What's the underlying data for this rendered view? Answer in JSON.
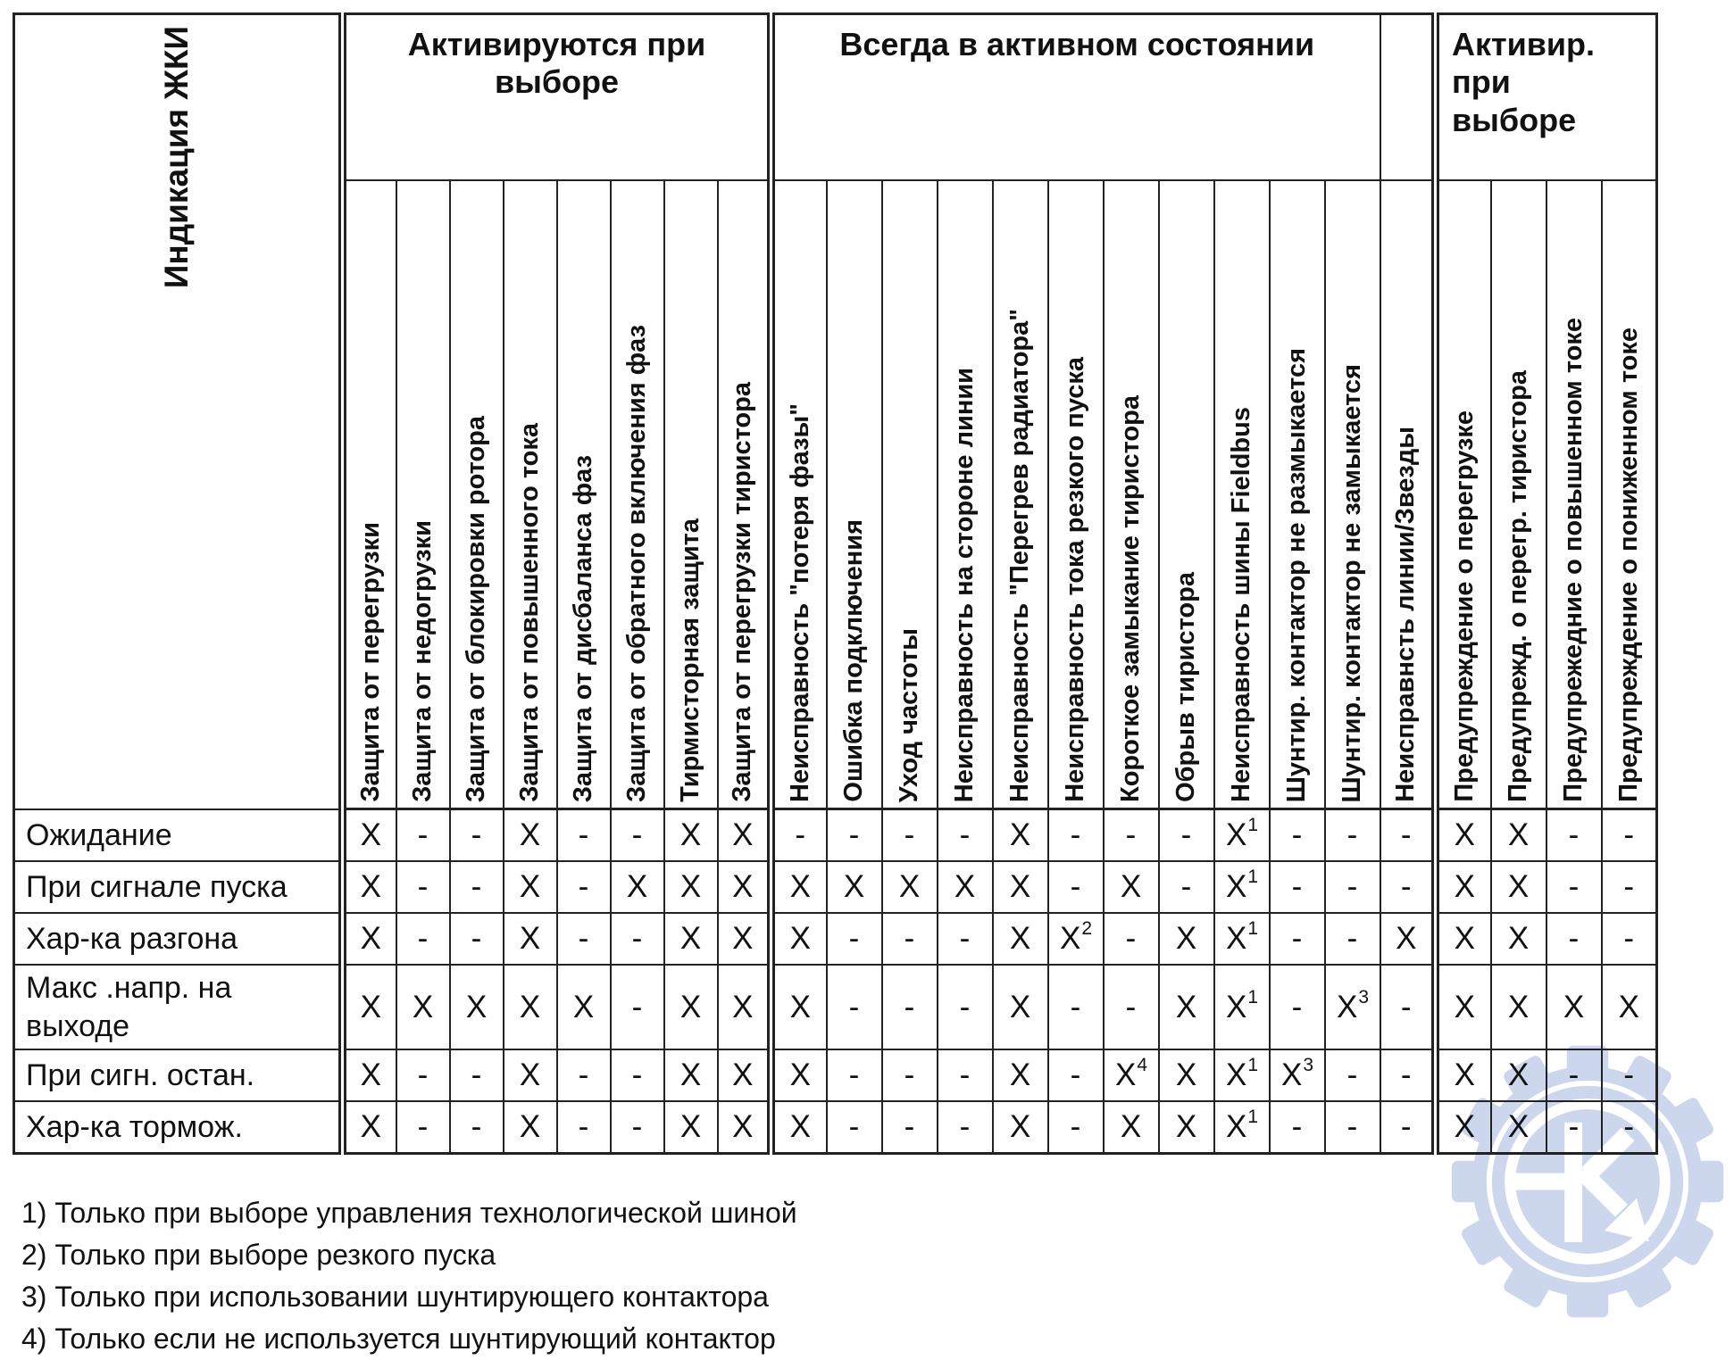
{
  "table": {
    "corner_label": "Индикация ЖКИ",
    "groups": [
      {
        "label": "Активируются при выборе",
        "span": 8
      },
      {
        "label": "Всегда в активном состоянии",
        "span": 11
      },
      {
        "label": "",
        "span": 1
      },
      {
        "label": "Активир. при выборе",
        "span": 4
      }
    ],
    "columns": [
      "Защита от перегрузки",
      "Защита от недогрузки",
      "Защита от блокировки ротора",
      "Защита от повышенного тока",
      "Защита от дисбаланса фаз",
      "Защита от обратного включения фаз",
      "Тирмисторная защита",
      "Защита от перегрузки тиристора",
      "Неисправность \"потеря фазы\"",
      "Ошибка подключения",
      "Уход частоты",
      "Неисправность на стороне линии",
      "Неисправность \"Перегрев радиатора\"",
      "Неисправность тока резкого пуска",
      "Короткое замыкание тиристора",
      "Обрыв тиристора",
      "Неисправность шины Fieldbus",
      "Шунтир. контактор не размыкается",
      "Шунтир. контактор не замыкается",
      "Неисправнсть линии/Звезды",
      "Предупреждение о перегрузке",
      "Предупрежд. о перегр. тиристора",
      "Предупрежедние о повышенном токе",
      "Предупреждение о пониженном токе"
    ],
    "rows": [
      {
        "label": "Ожидание",
        "cells": [
          "X",
          "-",
          "-",
          "X",
          "-",
          "-",
          "X",
          "X",
          "-",
          "-",
          "-",
          "-",
          "X",
          "-",
          "-",
          "-",
          "X1",
          "-",
          "-",
          "-",
          "X",
          "X",
          "-",
          "-"
        ]
      },
      {
        "label": "При сигнале пуска",
        "cells": [
          "X",
          "-",
          "-",
          "X",
          "-",
          "X",
          "X",
          "X",
          "X",
          "X",
          "X",
          "X",
          "X",
          "-",
          "X",
          "-",
          "X1",
          "-",
          "-",
          "-",
          "X",
          "X",
          "-",
          "-"
        ]
      },
      {
        "label": "Хар-ка разгона",
        "cells": [
          "X",
          "-",
          "-",
          "X",
          "-",
          "-",
          "X",
          "X",
          "X",
          "-",
          "-",
          "-",
          "X",
          "X2",
          "-",
          "X",
          "X1",
          "-",
          "-",
          "X",
          "X",
          "X",
          "-",
          "-"
        ]
      },
      {
        "label": "Макс .напр. на выходе",
        "cells": [
          "X",
          "X",
          "X",
          "X",
          "X",
          "-",
          "X",
          "X",
          "X",
          "-",
          "-",
          "-",
          "X",
          "-",
          "-",
          "X",
          "X1",
          "-",
          "X3",
          "-",
          "X",
          "X",
          "X",
          "X"
        ]
      },
      {
        "label": "При сигн. остан.",
        "cells": [
          "X",
          "-",
          "-",
          "X",
          "-",
          "-",
          "X",
          "X",
          "X",
          "-",
          "-",
          "-",
          "X",
          "-",
          "X4",
          "X",
          "X1",
          "X3",
          "-",
          "-",
          "X",
          "X",
          "-",
          "-"
        ]
      },
      {
        "label": "Хар-ка тормож.",
        "cells": [
          "X",
          "-",
          "-",
          "X",
          "-",
          "-",
          "X",
          "X",
          "X",
          "-",
          "-",
          "-",
          "X",
          "-",
          "X",
          "X",
          "X1",
          "-",
          "-",
          "-",
          "X",
          "X",
          "-",
          "-"
        ]
      }
    ]
  },
  "footnotes": [
    "1) Только при выборе управления технологической шиной",
    "2) Только при выборе резкого пуска",
    "3) Только при использовании шунтирующего контактора",
    "4) Только если не используется шунтирующий контактор"
  ],
  "watermark": {
    "name": "gear-K-logo",
    "color": "#ccd6ed"
  }
}
